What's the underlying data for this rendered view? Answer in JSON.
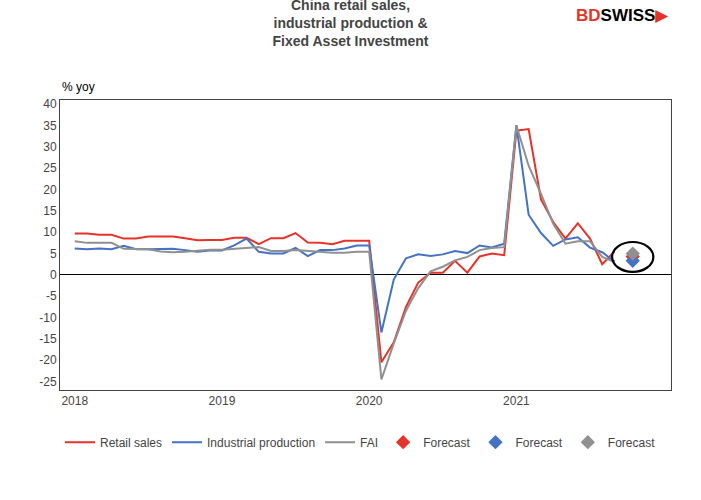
{
  "chart_data": {
    "type": "line",
    "title": "China retail sales,\nindustrial production &\nFixed Asset Investment",
    "ylabel": "% yoy",
    "annotations": [
      {
        "text": "BD",
        "color": "#e63329"
      },
      {
        "text": "SWISS",
        "color": "#000000"
      },
      {
        "text": "▶",
        "color": "#e63329"
      }
    ],
    "xlim": [
      2017.9,
      2022.05
    ],
    "xticks": [
      2018,
      2019,
      2020,
      2021
    ],
    "ylim": [
      -27,
      41
    ],
    "yticks": [
      -25,
      -20,
      -15,
      -10,
      -5,
      0,
      5,
      10,
      15,
      20,
      25,
      30,
      35,
      40
    ],
    "grid": false,
    "legend": "bottom",
    "circle": {
      "center_x": 2021.79,
      "center_y": 4.2,
      "width": 0.28,
      "height": 7.0
    },
    "series": [
      {
        "name": "Retail sales",
        "type": "line",
        "line_style": "solid",
        "color": "#e63329",
        "x": [
          2018.0,
          2018.083,
          2018.167,
          2018.25,
          2018.333,
          2018.417,
          2018.5,
          2018.583,
          2018.667,
          2018.75,
          2018.833,
          2018.917,
          2019.0,
          2019.083,
          2019.167,
          2019.25,
          2019.333,
          2019.417,
          2019.5,
          2019.583,
          2019.667,
          2019.75,
          2019.833,
          2019.917,
          2020.0,
          2020.083,
          2020.167,
          2020.25,
          2020.333,
          2020.417,
          2020.5,
          2020.583,
          2020.667,
          2020.75,
          2020.833,
          2020.917,
          2021.0,
          2021.083,
          2021.167,
          2021.25,
          2021.333,
          2021.417,
          2021.5,
          2021.583,
          2021.667
        ],
        "values": [
          9.7,
          9.7,
          9.4,
          9.4,
          8.5,
          8.5,
          9.0,
          9.0,
          9.0,
          8.6,
          8.1,
          8.2,
          8.2,
          8.7,
          8.7,
          7.2,
          8.6,
          8.6,
          9.8,
          7.6,
          7.5,
          7.2,
          8.0,
          8.0,
          8.0,
          -20.5,
          -15.8,
          -7.5,
          -1.8,
          0.5,
          0.5,
          3.3,
          0.5,
          4.3,
          5.0,
          4.6,
          33.8,
          34.2,
          17.7,
          12.4,
          8.5,
          12.1,
          8.5,
          2.5,
          5.5
        ]
      },
      {
        "name": "Industrial production",
        "type": "line",
        "line_style": "solid",
        "color": "#4472c4",
        "x": [
          2018.0,
          2018.083,
          2018.167,
          2018.25,
          2018.333,
          2018.417,
          2018.5,
          2018.583,
          2018.667,
          2018.75,
          2018.833,
          2018.917,
          2019.0,
          2019.083,
          2019.167,
          2019.25,
          2019.333,
          2019.417,
          2019.5,
          2019.583,
          2019.667,
          2019.75,
          2019.833,
          2019.917,
          2020.0,
          2020.083,
          2020.167,
          2020.25,
          2020.333,
          2020.417,
          2020.5,
          2020.583,
          2020.667,
          2020.75,
          2020.833,
          2020.917,
          2021.0,
          2021.083,
          2021.167,
          2021.25,
          2021.333,
          2021.417,
          2021.5,
          2021.583,
          2021.667
        ],
        "values": [
          6.2,
          6.0,
          6.2,
          6.0,
          6.8,
          6.0,
          6.0,
          6.1,
          6.1,
          5.8,
          5.4,
          5.7,
          5.7,
          6.9,
          8.5,
          5.4,
          5.0,
          5.0,
          6.3,
          4.4,
          5.8,
          5.8,
          6.2,
          6.9,
          6.9,
          -13.5,
          -1.1,
          3.9,
          4.8,
          4.4,
          4.8,
          5.6,
          5.1,
          6.9,
          6.4,
          7.3,
          35.1,
          14.1,
          9.8,
          6.8,
          8.3,
          8.8,
          6.4,
          5.3,
          3.1
        ]
      },
      {
        "name": "FAI",
        "type": "line",
        "line_style": "solid",
        "color": "#909090",
        "x": [
          2018.0,
          2018.083,
          2018.167,
          2018.25,
          2018.333,
          2018.417,
          2018.5,
          2018.583,
          2018.667,
          2018.75,
          2018.833,
          2018.917,
          2019.0,
          2019.083,
          2019.167,
          2019.25,
          2019.333,
          2019.417,
          2019.5,
          2019.583,
          2019.667,
          2019.75,
          2019.833,
          2019.917,
          2020.0,
          2020.083,
          2020.167,
          2020.25,
          2020.333,
          2020.417,
          2020.5,
          2020.583,
          2020.667,
          2020.75,
          2020.833,
          2020.917,
          2021.0,
          2021.083,
          2021.167,
          2021.25,
          2021.333,
          2021.417,
          2021.5,
          2021.583,
          2021.667
        ],
        "values": [
          7.9,
          7.5,
          7.5,
          7.5,
          6.1,
          6.1,
          6.0,
          5.5,
          5.3,
          5.4,
          5.7,
          5.9,
          5.9,
          6.1,
          6.3,
          6.5,
          5.6,
          5.6,
          5.8,
          5.6,
          5.4,
          5.2,
          5.2,
          5.4,
          5.4,
          -24.5,
          -16.1,
          -8.4,
          -3.1,
          0.8,
          1.9,
          3.4,
          4.2,
          5.8,
          6.3,
          6.5,
          35.0,
          25.6,
          19.0,
          12.0,
          7.3,
          7.9,
          7.9,
          4.2,
          3.0
        ]
      },
      {
        "name": "Forecast",
        "type": "scatter",
        "marker": "diamond",
        "color": "#e63329",
        "x": [
          2021.79
        ],
        "values": [
          4.3
        ]
      },
      {
        "name": "Forecast",
        "type": "scatter",
        "marker": "diamond",
        "color": "#4472c4",
        "x": [
          2021.79
        ],
        "values": [
          3.3
        ]
      },
      {
        "name": "Forecast",
        "type": "scatter",
        "marker": "diamond",
        "color": "#909090",
        "x": [
          2021.79
        ],
        "values": [
          5.0
        ]
      }
    ]
  }
}
